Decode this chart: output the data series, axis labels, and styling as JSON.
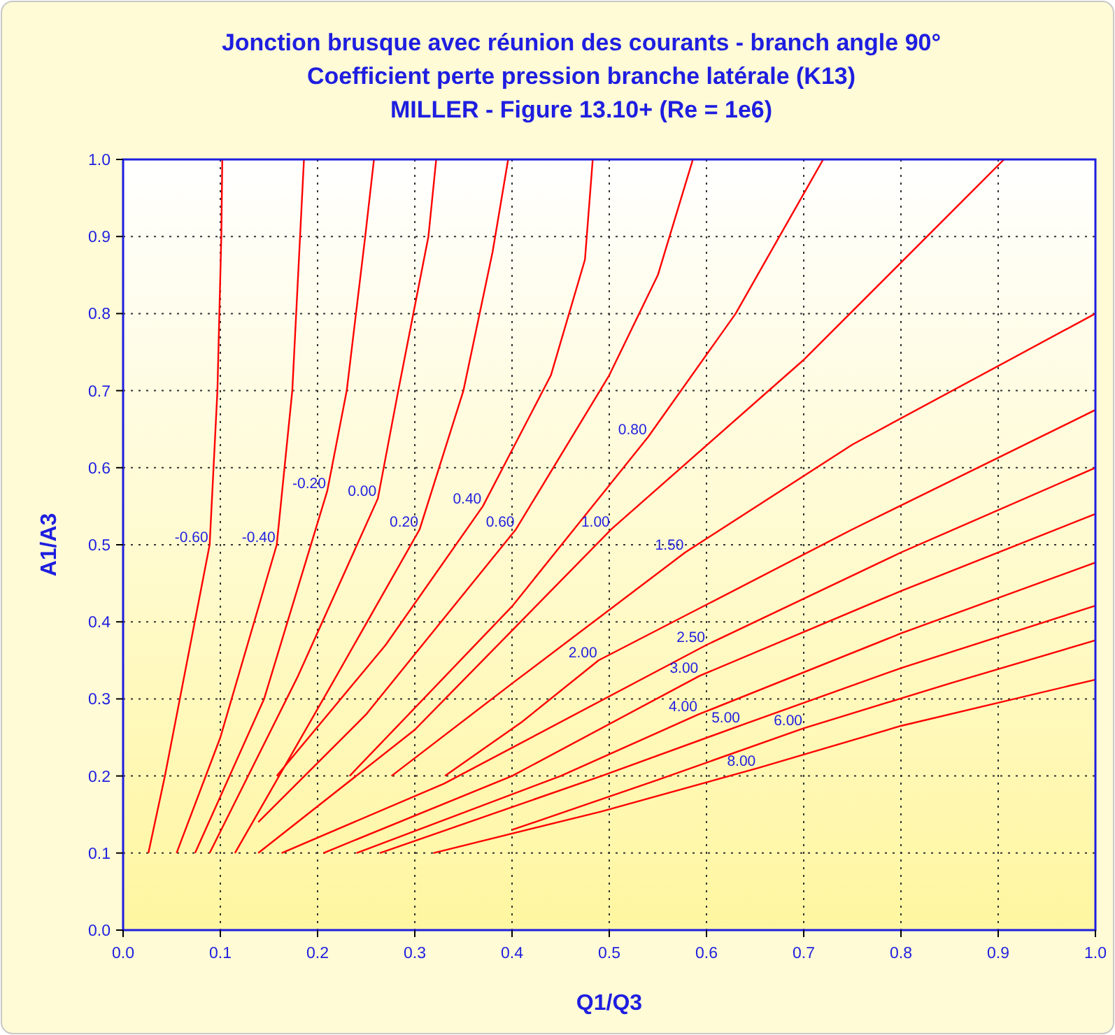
{
  "chart_data": {
    "type": "line",
    "title": "Jonction brusque avec réunion des courants - branch angle 90°\nCoefficient perte pression branche latérale (K13)\nMILLER - Figure 13.10+ (Re = 1e6)",
    "xlabel": "Q1/Q3",
    "ylabel": "A1/A3",
    "xlim": [
      0,
      1
    ],
    "ylim": [
      0,
      1
    ],
    "xticks": [
      {
        "value": 0,
        "label": "0.0"
      },
      {
        "value": 0.1,
        "label": "0.1"
      },
      {
        "value": 0.2,
        "label": "0.2"
      },
      {
        "value": 0.3,
        "label": "0.3"
      },
      {
        "value": 0.4,
        "label": "0.4"
      },
      {
        "value": 0.5,
        "label": "0.5"
      },
      {
        "value": 0.6,
        "label": "0.6"
      },
      {
        "value": 0.7,
        "label": "0.7"
      },
      {
        "value": 0.8,
        "label": "0.8"
      },
      {
        "value": 0.9,
        "label": "0.9"
      },
      {
        "value": 1,
        "label": "1.0"
      }
    ],
    "yticks": [
      {
        "value": 0,
        "label": "0.0"
      },
      {
        "value": 0.1,
        "label": "0.1"
      },
      {
        "value": 0.2,
        "label": "0.2"
      },
      {
        "value": 0.3,
        "label": "0.3"
      },
      {
        "value": 0.4,
        "label": "0.4"
      },
      {
        "value": 0.5,
        "label": "0.5"
      },
      {
        "value": 0.6,
        "label": "0.6"
      },
      {
        "value": 0.7,
        "label": "0.7"
      },
      {
        "value": 0.8,
        "label": "0.8"
      },
      {
        "value": 0.9,
        "label": "0.9"
      },
      {
        "value": 1,
        "label": "1.0"
      }
    ],
    "grid": true,
    "marker": "none",
    "line_style": "solid",
    "series": [
      {
        "name": "-0.60",
        "color": "#ff0000",
        "x": [
          0.026,
          0.043,
          0.089,
          0.097,
          0.101,
          0.102
        ],
        "values": [
          0.1,
          0.2,
          0.5,
          0.7,
          0.9,
          1.0
        ]
      },
      {
        "name": "-0.40",
        "color": "#ff0000",
        "x": [
          0.055,
          0.1,
          0.158,
          0.174,
          0.182,
          0.186
        ],
        "values": [
          0.1,
          0.25,
          0.5,
          0.7,
          0.9,
          1.0
        ]
      },
      {
        "name": "-0.20",
        "color": "#ff0000",
        "x": [
          0.074,
          0.145,
          0.21,
          0.23,
          0.249,
          0.258
        ],
        "values": [
          0.1,
          0.3,
          0.57,
          0.7,
          0.9,
          1.0
        ]
      },
      {
        "name": "0.00",
        "color": "#ff0000",
        "x": [
          0.089,
          0.18,
          0.262,
          0.283,
          0.314,
          0.322
        ],
        "values": [
          0.1,
          0.33,
          0.56,
          0.7,
          0.9,
          1.0
        ]
      },
      {
        "name": "0.20",
        "color": "#ff0000",
        "x": [
          0.115,
          0.215,
          0.305,
          0.35,
          0.38,
          0.396
        ],
        "values": [
          0.1,
          0.32,
          0.52,
          0.7,
          0.88,
          1.0
        ]
      },
      {
        "name": "0.40",
        "color": "#ff0000",
        "x": [
          0.158,
          0.27,
          0.37,
          0.44,
          0.475,
          0.483
        ],
        "values": [
          0.2,
          0.37,
          0.55,
          0.72,
          0.87,
          1.0
        ]
      },
      {
        "name": "0.60",
        "color": "#ff0000",
        "x": [
          0.139,
          0.25,
          0.404,
          0.5,
          0.55,
          0.586
        ],
        "values": [
          0.14,
          0.28,
          0.52,
          0.72,
          0.85,
          1.0
        ]
      },
      {
        "name": "0.80",
        "color": "#ff0000",
        "x": [
          0.233,
          0.4,
          0.54,
          0.63,
          0.72
        ],
        "values": [
          0.2,
          0.42,
          0.64,
          0.8,
          1.0
        ]
      },
      {
        "name": "1.00",
        "color": "#ff0000",
        "x": [
          0.139,
          0.3,
          0.502,
          0.7,
          0.906
        ],
        "values": [
          0.1,
          0.26,
          0.52,
          0.74,
          1.0
        ]
      },
      {
        "name": "1.50",
        "color": "#ff0000",
        "x": [
          0.276,
          0.4,
          0.578,
          0.75,
          1.0
        ],
        "values": [
          0.2,
          0.32,
          0.49,
          0.63,
          0.8
        ]
      },
      {
        "name": "2.00",
        "color": "#ff0000",
        "x": [
          0.331,
          0.41,
          0.489,
          0.75,
          1.0
        ],
        "values": [
          0.2,
          0.27,
          0.35,
          0.52,
          0.675
        ]
      },
      {
        "name": "2.50",
        "color": "#ff0000",
        "x": [
          0.163,
          0.33,
          0.6,
          0.8,
          1.0
        ],
        "values": [
          0.1,
          0.19,
          0.37,
          0.49,
          0.6
        ]
      },
      {
        "name": "3.00",
        "color": "#ff0000",
        "x": [
          0.206,
          0.4,
          0.593,
          0.8,
          1.0
        ],
        "values": [
          0.1,
          0.2,
          0.33,
          0.44,
          0.54
        ]
      },
      {
        "name": "4.00",
        "color": "#ff0000",
        "x": [
          0.24,
          0.45,
          0.592,
          0.8,
          1.0
        ],
        "values": [
          0.1,
          0.2,
          0.28,
          0.385,
          0.477
        ]
      },
      {
        "name": "5.00",
        "color": "#ff0000",
        "x": [
          0.264,
          0.492,
          0.636,
          0.8,
          1.0
        ],
        "values": [
          0.1,
          0.2,
          0.266,
          0.34,
          0.421
        ]
      },
      {
        "name": "6.00",
        "color": "#ff0000",
        "x": [
          0.4,
          0.55,
          0.7,
          0.85,
          1.0
        ],
        "values": [
          0.13,
          0.195,
          0.262,
          0.32,
          0.376
        ]
      },
      {
        "name": "8.00",
        "color": "#ff0000",
        "x": [
          0.319,
          0.492,
          0.652,
          0.8,
          1.0
        ],
        "values": [
          0.1,
          0.154,
          0.21,
          0.265,
          0.325
        ]
      }
    ]
  }
}
